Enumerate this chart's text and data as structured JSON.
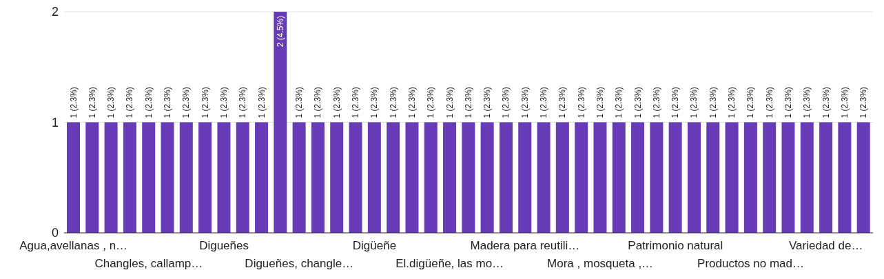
{
  "chart_data": {
    "type": "bar",
    "categories": [
      "Agua,avellanas , n…",
      null,
      null,
      null,
      "Changles, callamp…",
      null,
      null,
      null,
      "Digueñes",
      null,
      null,
      null,
      "Digueñes, changle…",
      null,
      null,
      null,
      "Digüeñe",
      null,
      null,
      null,
      "El.digüeñe, las mo…",
      null,
      null,
      null,
      "Madera para reutili…",
      null,
      null,
      null,
      "Mora , mosqueta ,…",
      null,
      null,
      null,
      "Patrimonio natural",
      null,
      null,
      null,
      "Productos no mad…",
      null,
      null,
      null,
      "Variedad de…",
      null,
      null
    ],
    "values": [
      1,
      1,
      1,
      1,
      1,
      1,
      1,
      1,
      1,
      1,
      1,
      2,
      1,
      1,
      1,
      1,
      1,
      1,
      1,
      1,
      1,
      1,
      1,
      1,
      1,
      1,
      1,
      1,
      1,
      1,
      1,
      1,
      1,
      1,
      1,
      1,
      1,
      1,
      1,
      1,
      1,
      1,
      1
    ],
    "value_labels": [
      "1 (2.3%)",
      "1 (2.3%)",
      "1 (2.3%)",
      "1 (2.3%)",
      "1 (2.3%)",
      "1 (2.3%)",
      "1 (2.3%)",
      "1 (2.3%)",
      "1 (2.3%)",
      "1 (2.3%)",
      "1 (2.3%)",
      "2 (4.5%)",
      "1 (2.3%)",
      "1 (2.3%)",
      "1 (2.3%)",
      "1 (2.3%)",
      "1 (2.3%)",
      "1 (2.3%)",
      "1 (2.3%)",
      "1 (2.3%)",
      "1 (2.3%)",
      "1 (2.3%)",
      "1 (2.3%)",
      "1 (2.3%)",
      "1 (2.3%)",
      "1 (2.3%)",
      "1 (2.3%)",
      "1 (2.3%)",
      "1 (2.3%)",
      "1 (2.3%)",
      "1 (2.3%)",
      "1 (2.3%)",
      "1 (2.3%)",
      "1 (2.3%)",
      "1 (2.3%)",
      "1 (2.3%)",
      "1 (2.3%)",
      "1 (2.3%)",
      "1 (2.3%)",
      "1 (2.3%)",
      "1 (2.3%)",
      "1 (2.3%)",
      "1 (2.3%)"
    ],
    "color": "#673ab7",
    "ylim": [
      0,
      2
    ],
    "yticks": [
      0,
      1,
      2
    ],
    "grid": "y"
  }
}
